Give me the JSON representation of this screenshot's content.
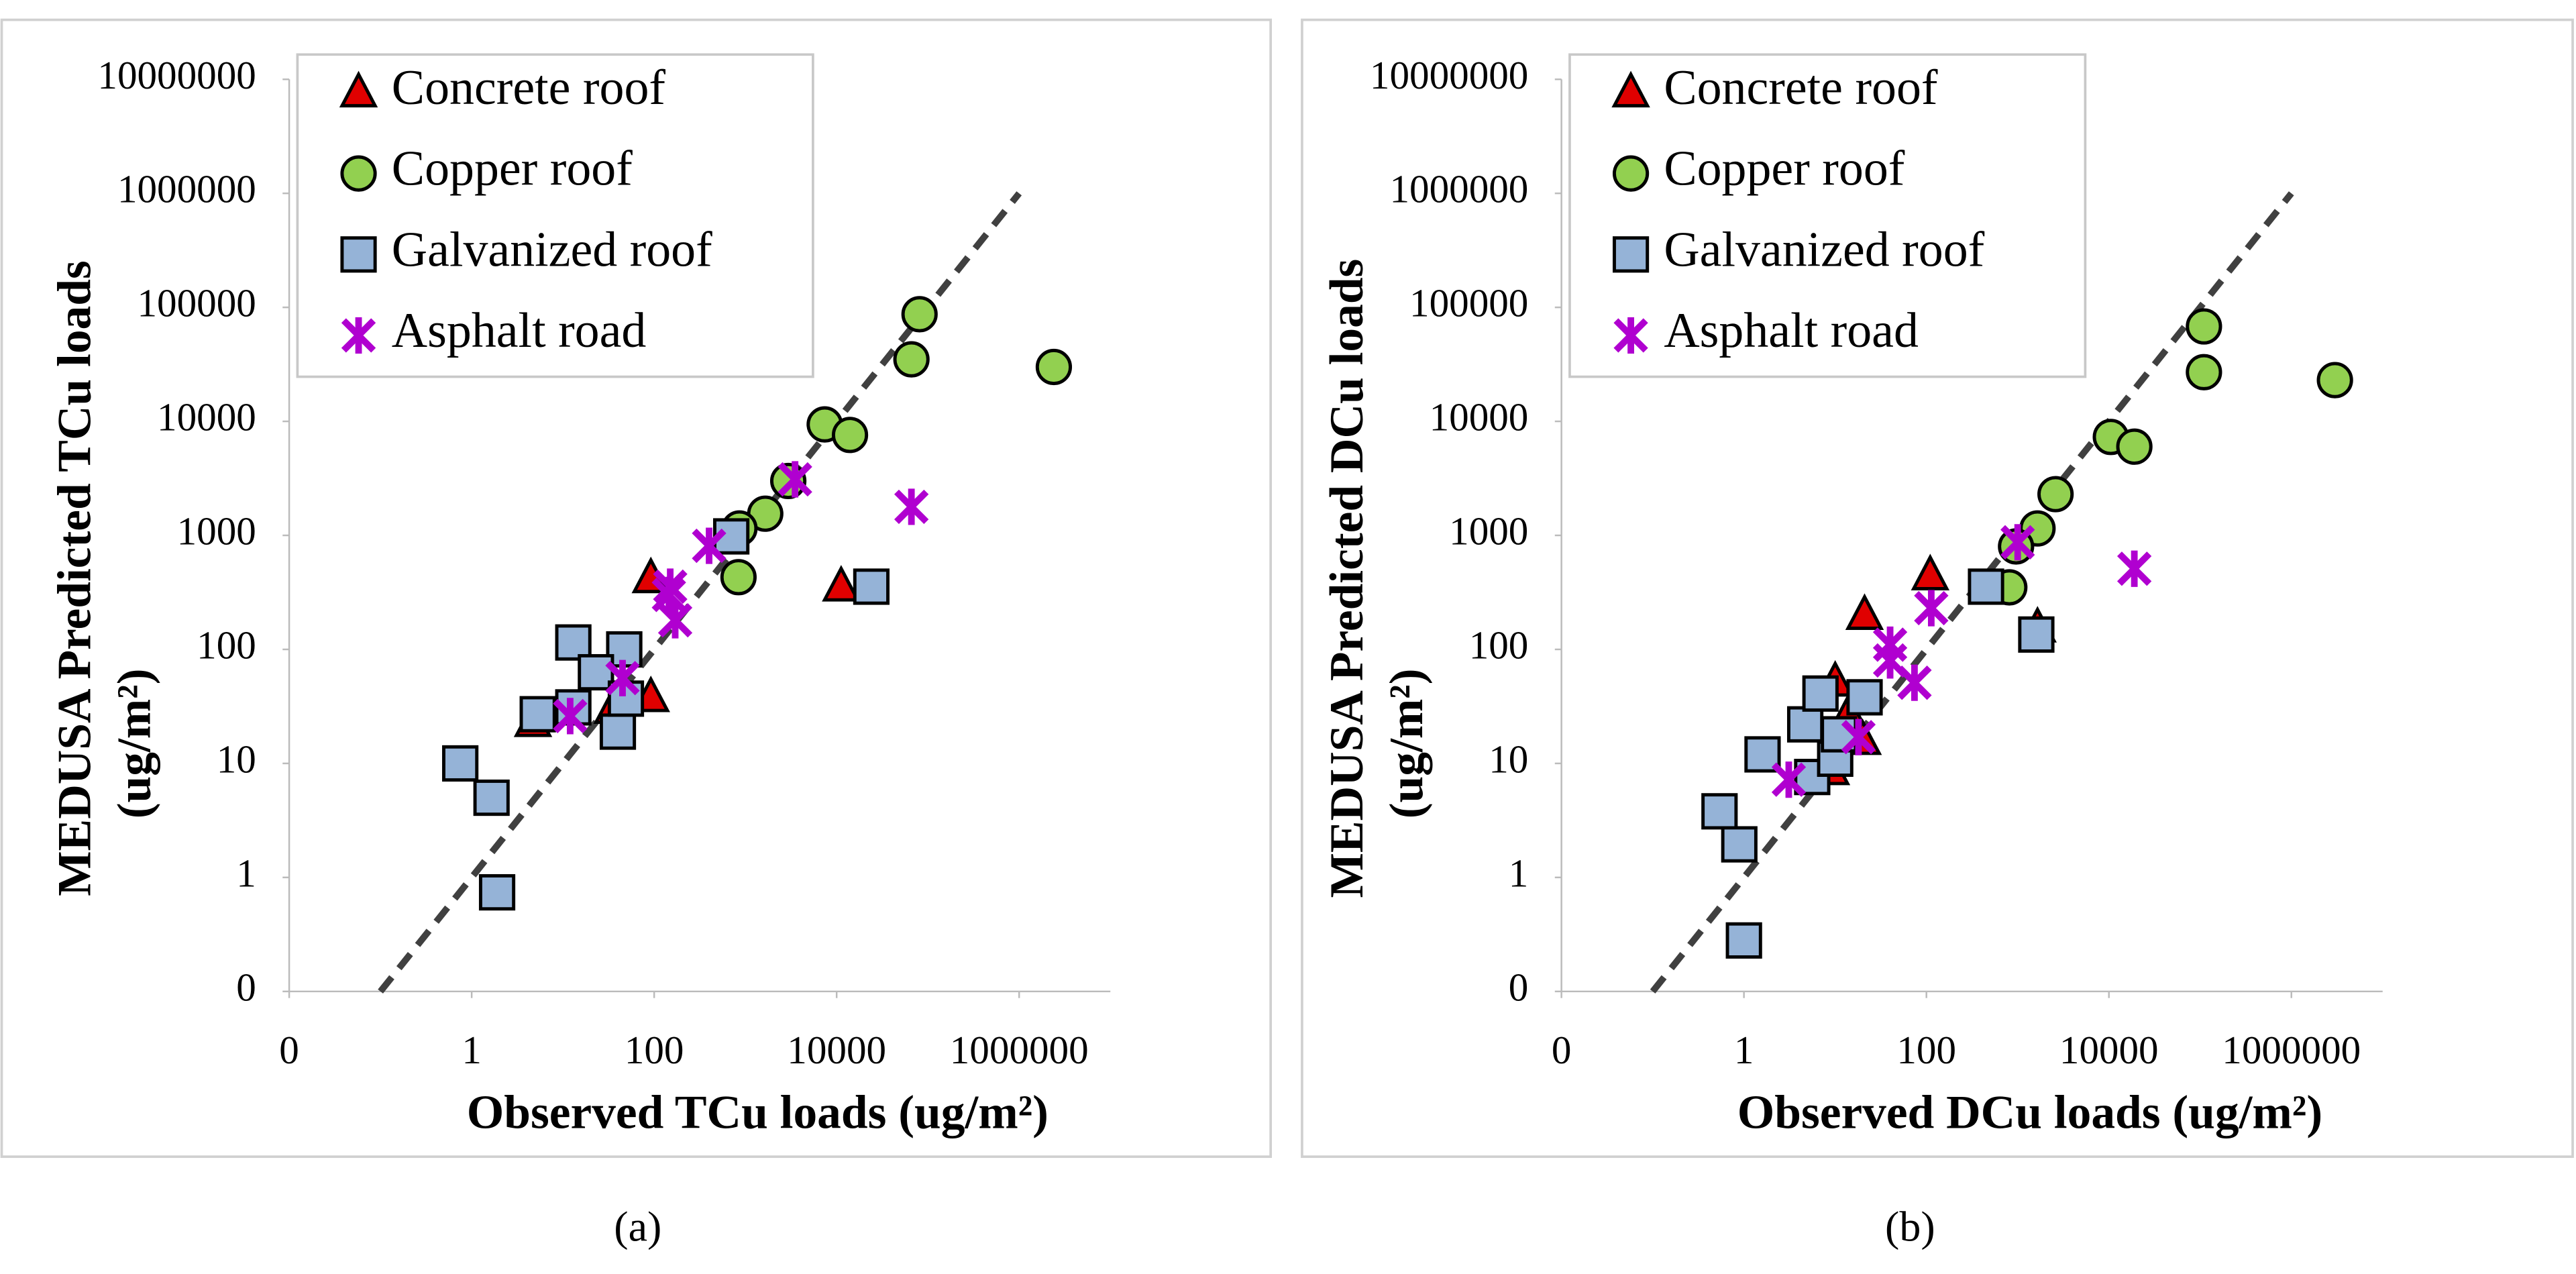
{
  "chart_data": [
    {
      "type": "scatter",
      "caption": "(a)",
      "xlabel": "Observed TCu loads (ug/m²)",
      "ylabel": [
        "MEDUSA Predicted TCu loads",
        "(ug/m²)"
      ],
      "log_x": true,
      "log_y": true,
      "legend": "upper left",
      "xlim": [
        0.01,
        10000000
      ],
      "xticks": [
        {
          "value": 0.01,
          "label": "0"
        },
        1,
        100,
        10000,
        1000000
      ],
      "ylim": [
        0.1,
        10000000
      ],
      "yticks": [
        {
          "value": 0.1,
          "label": "0"
        },
        1,
        10,
        100,
        1000,
        10000,
        100000,
        1000000,
        10000000
      ],
      "reference_line": {
        "x": [
          0.1,
          1000000
        ],
        "y": [
          0.1,
          1000000
        ]
      },
      "series": [
        {
          "name": "Concrete roof",
          "color": "#e00000",
          "marker": "triangle",
          "x": [
            4.7,
            92,
            92,
            11200,
            35
          ],
          "values": [
            23,
            420,
            38,
            355,
            30
          ]
        },
        {
          "name": "Copper roof",
          "color": "#92d050",
          "marker": "circle",
          "x": [
            81000,
            66000,
            2400000,
            7400,
            14000,
            2950,
            1650,
            860,
            840
          ],
          "values": [
            87000,
            35000,
            30000,
            9400,
            7600,
            3000,
            1550,
            1150,
            430
          ]
        },
        {
          "name": "Galvanized roof",
          "color": "#95b3d7",
          "marker": "square",
          "x": [
            0.75,
            1.65,
            1.9,
            13,
            47,
            23,
            5.3,
            13,
            40,
            49,
            700,
            24000
          ],
          "values": [
            10,
            5,
            0.74,
            115,
            100,
            63,
            27,
            31,
            19,
            37,
            980,
            355
          ]
        },
        {
          "name": "Asphalt road",
          "color": "#b000d0",
          "marker": "star",
          "x": [
            12,
            45,
            150,
            170,
            145,
            400,
            3500,
            66000
          ],
          "values": [
            26,
            56,
            355,
            180,
            300,
            810,
            3100,
            1780
          ]
        }
      ]
    },
    {
      "type": "scatter",
      "caption": "(b)",
      "xlabel": "Observed DCu loads (ug/m²)",
      "ylabel": [
        "MEDUSA Predicted DCu loads",
        "(ug/m²)"
      ],
      "log_x": true,
      "log_y": true,
      "legend": "upper left",
      "xlim": [
        0.01,
        10000000
      ],
      "xticks": [
        {
          "value": 0.01,
          "label": "0"
        },
        1,
        100,
        10000,
        1000000
      ],
      "ylim": [
        0.1,
        10000000
      ],
      "yticks": [
        {
          "value": 0.1,
          "label": "0"
        },
        1,
        10,
        100,
        1000,
        10000,
        100000,
        1000000,
        10000000
      ],
      "reference_line": {
        "x": [
          0.1,
          1000000
        ],
        "y": [
          0.1,
          1000000
        ]
      },
      "series": [
        {
          "name": "Concrete roof",
          "color": "#e00000",
          "marker": "triangle",
          "x": [
            110,
            21,
            14,
            20,
            9,
            10,
            1650
          ],
          "values": [
            445,
            200,
            27,
            16,
            8.7,
            52,
            155
          ]
        },
        {
          "name": "Copper roof",
          "color": "#92d050",
          "marker": "circle",
          "x": [
            110000,
            110000,
            3000000,
            10500,
            19000,
            2600,
            1650,
            960,
            810
          ],
          "values": [
            68000,
            27000,
            23000,
            7300,
            6000,
            2300,
            1150,
            800,
            350
          ]
        },
        {
          "name": "Galvanized roof",
          "color": "#95b3d7",
          "marker": "square",
          "x": [
            0.54,
            0.89,
            1.0,
            1.6,
            4.7,
            6.9,
            21,
            5.6,
            10,
            11,
            450,
            1600
          ],
          "values": [
            3.8,
            1.95,
            0.28,
            12,
            22,
            41,
            38,
            7.6,
            11,
            18,
            355,
            135
          ]
        },
        {
          "name": "Asphalt road",
          "color": "#b000d0",
          "marker": "star",
          "x": [
            3.1,
            18,
            40,
            40,
            74,
            113,
            1000,
            19000
          ],
          "values": [
            7.2,
            17,
            110,
            80,
            51,
            230,
            870,
            510
          ]
        }
      ]
    }
  ]
}
